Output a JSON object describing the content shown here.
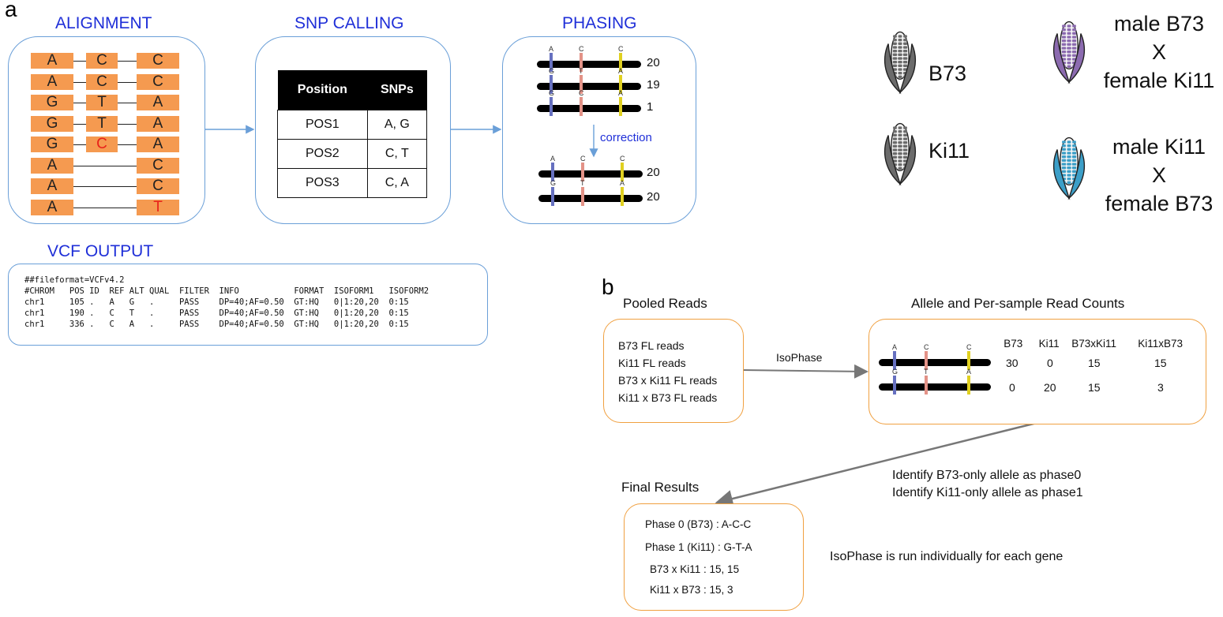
{
  "panel_a": {
    "letter": "a",
    "alignment": {
      "title": "ALIGNMENT",
      "rows": [
        {
          "c1": "A",
          "c2": "C",
          "c3": "C",
          "c2_red": false,
          "c3_red": false
        },
        {
          "c1": "A",
          "c2": "C",
          "c3": "C",
          "c2_red": false,
          "c3_red": false
        },
        {
          "c1": "G",
          "c2": "T",
          "c3": "A",
          "c2_red": false,
          "c3_red": false
        },
        {
          "c1": "G",
          "c2": "T",
          "c3": "A",
          "c2_red": false,
          "c3_red": false
        },
        {
          "c1": "G",
          "c2": "C",
          "c3": "A",
          "c2_red": true,
          "c3_red": false
        },
        {
          "c1": "A",
          "c2": "",
          "c3": "C",
          "c2_red": false,
          "c3_red": false
        },
        {
          "c1": "A",
          "c2": "",
          "c3": "C",
          "c2_red": false,
          "c3_red": false
        },
        {
          "c1": "A",
          "c2": "",
          "c3": "T",
          "c2_red": false,
          "c3_red": true
        }
      ]
    },
    "snp_calling": {
      "title": "SNP CALLING",
      "headers": [
        "Position",
        "SNPs"
      ],
      "rows": [
        [
          "POS1",
          "A, G"
        ],
        [
          "POS2",
          "C, T"
        ],
        [
          "POS3",
          "C, A"
        ]
      ]
    },
    "phasing": {
      "title": "PHASING",
      "top": [
        {
          "alleles": [
            "A",
            "C",
            "C"
          ],
          "count": "20"
        },
        {
          "alleles": [
            "G",
            "T",
            "A"
          ],
          "count": "19"
        },
        {
          "alleles": [
            "G",
            "C",
            "A"
          ],
          "count": "1"
        }
      ],
      "correction_label": "correction",
      "bottom": [
        {
          "alleles": [
            "A",
            "C",
            "C"
          ],
          "count": "20"
        },
        {
          "alleles": [
            "G",
            "T",
            "A"
          ],
          "count": "20"
        }
      ]
    },
    "vcf": {
      "title": "VCF OUTPUT",
      "lines": [
        "##fileformat=VCFv4.2",
        "#CHROM   POS ID  REF ALT QUAL  FILTER  INFO           FORMAT  ISOFORM1   ISOFORM2",
        "chr1     105 .   A   G   .     PASS    DP=40;AF=0.50  GT:HQ   0|1:20,20  0:15",
        "chr1     190 .   C   T   .     PASS    DP=40;AF=0.50  GT:HQ   0|1:20,20  0:15",
        "chr1     336 .   C   A   .     PASS    DP=40;AF=0.50  GT:HQ   0|1:20,20  0:15"
      ]
    },
    "samples": [
      {
        "label": "B73",
        "color": "#6b6b6b"
      },
      {
        "label": "Ki11",
        "color": "#6b6b6b"
      },
      {
        "label_lines": [
          "male B73",
          "X",
          "female Ki11"
        ],
        "color": "#8c6bb0"
      },
      {
        "label_lines": [
          "male Ki11",
          "X",
          "female B73"
        ],
        "color": "#3c9fc8"
      }
    ]
  },
  "panel_b": {
    "letter": "b",
    "pooled": {
      "title": "Pooled Reads",
      "lines": [
        "B73 FL reads",
        "Ki11 FL reads",
        "B73 x Ki11 FL reads",
        "Ki11 x B73 FL reads"
      ]
    },
    "arrow_label": "IsoPhase",
    "counts": {
      "title": "Allele and Per-sample Read Counts",
      "headers": [
        "B73",
        "Ki11",
        "B73xKi11",
        "Ki11xB73"
      ],
      "haplotypes": [
        {
          "alleles": [
            "A",
            "C",
            "C"
          ],
          "counts": [
            "30",
            "0",
            "15",
            "15"
          ]
        },
        {
          "alleles": [
            "G",
            "T",
            "A"
          ],
          "counts": [
            "0",
            "20",
            "15",
            "3"
          ]
        }
      ]
    },
    "identify_lines": [
      "Identify B73-only allele as phase0",
      "Identify Ki11-only allele as phase1"
    ],
    "final": {
      "title": "Final Results",
      "lines": [
        "Phase 0 (B73) : A-C-C",
        "Phase 1 (Ki11) : G-T-A",
        "B73 x Ki11  :  15, 15",
        "Ki11 x B73  :  15, 3"
      ]
    },
    "note": "IsoPhase is run individually for each gene"
  },
  "colors": {
    "snp1": "#6670c0",
    "snp2": "#e39287",
    "snp3": "#e0d020",
    "title_blue": "#1f2fd8",
    "box_blue": "#6a9fd8",
    "box_orange": "#f0a040",
    "cell_orange": "#f59a50"
  }
}
